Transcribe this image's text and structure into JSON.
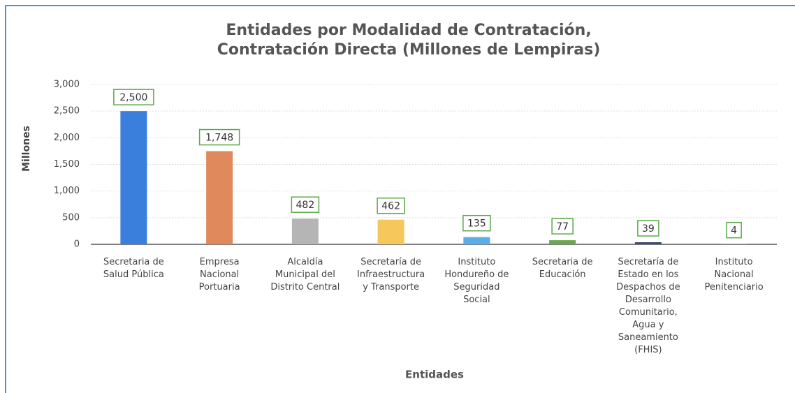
{
  "chart_data": {
    "type": "bar",
    "title": "Entidades por Modalidad de Contratación,\nContratación Directa (Millones de Lempiras)",
    "x_label": "Entidades",
    "y_label": "Millones",
    "categories": [
      "Secretaria de\nSalud Pública",
      "Empresa\nNacional\nPortuaria",
      "Alcaldía\nMunicipal del\nDistrito Central",
      "Secretaría de\nInfraestructura\ny Transporte",
      "Instituto\nHondureño de\nSeguridad\nSocial",
      "Secretaria de\nEducación",
      "Secretaría de\nEstado en los\nDespachos de\nDesarrollo\nComunitario,\nAgua y\nSaneamiento\n(FHIS)",
      "Instituto\nNacional\nPenitenciario"
    ],
    "values": [
      2500,
      1748,
      482,
      462,
      135,
      77,
      39,
      4
    ],
    "value_labels": [
      "2,500",
      "1,748",
      "482",
      "462",
      "135",
      "77",
      "39",
      "4"
    ],
    "colors": [
      "#3a7fdb",
      "#e0895c",
      "#b5b5b5",
      "#f6c85c",
      "#5aade6",
      "#6aa84f",
      "#3d4b6b",
      "#c8c8c8"
    ],
    "ylim": [
      0,
      3000
    ],
    "yticks": [
      0,
      500,
      {
        "value": 1000,
        "label": "1,000"
      },
      {
        "value": 1500,
        "label": "1,500"
      },
      {
        "value": 2000,
        "label": "2,000"
      },
      {
        "value": 2500,
        "label": "2,500"
      },
      {
        "value": 3000,
        "label": "3,000"
      }
    ],
    "grid": true
  }
}
